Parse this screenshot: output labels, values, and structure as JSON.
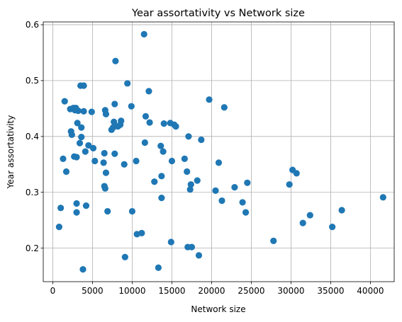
{
  "chart_data": {
    "type": "scatter",
    "title": "Year assortativity vs Network size",
    "xlabel": "Network size",
    "ylabel": "Year assortativity",
    "xlim": [
      -1200,
      43000
    ],
    "ylim": [
      0.14,
      0.605
    ],
    "xticks": [
      0,
      5000,
      10000,
      15000,
      20000,
      25000,
      30000,
      35000,
      40000
    ],
    "xtick_labels": [
      "0",
      "5000",
      "10000",
      "15000",
      "20000",
      "25000",
      "30000",
      "35000",
      "40000"
    ],
    "yticks": [
      0.2,
      0.3,
      0.4,
      0.5,
      0.6
    ],
    "ytick_labels": [
      "0.2",
      "0.3",
      "0.4",
      "0.5",
      "0.6"
    ],
    "grid": true,
    "marker_color": "#1f77b4",
    "points": [
      [
        800,
        0.238
      ],
      [
        1000,
        0.272
      ],
      [
        1300,
        0.36
      ],
      [
        1500,
        0.463
      ],
      [
        1700,
        0.337
      ],
      [
        2200,
        0.449
      ],
      [
        2300,
        0.409
      ],
      [
        2400,
        0.403
      ],
      [
        2600,
        0.451
      ],
      [
        2700,
        0.364
      ],
      [
        2800,
        0.447
      ],
      [
        2900,
        0.451
      ],
      [
        3000,
        0.363
      ],
      [
        3000,
        0.28
      ],
      [
        3000,
        0.264
      ],
      [
        3100,
        0.424
      ],
      [
        3200,
        0.446
      ],
      [
        3400,
        0.388
      ],
      [
        3500,
        0.491
      ],
      [
        3600,
        0.416
      ],
      [
        3600,
        0.399
      ],
      [
        3800,
        0.162
      ],
      [
        3900,
        0.491
      ],
      [
        3900,
        0.445
      ],
      [
        4100,
        0.373
      ],
      [
        4200,
        0.276
      ],
      [
        4500,
        0.384
      ],
      [
        4900,
        0.444
      ],
      [
        5100,
        0.379
      ],
      [
        5300,
        0.356
      ],
      [
        6400,
        0.353
      ],
      [
        6500,
        0.311
      ],
      [
        6500,
        0.37
      ],
      [
        6600,
        0.307
      ],
      [
        6600,
        0.447
      ],
      [
        6700,
        0.335
      ],
      [
        6700,
        0.44
      ],
      [
        6900,
        0.266
      ],
      [
        7400,
        0.412
      ],
      [
        7600,
        0.416
      ],
      [
        7700,
        0.426
      ],
      [
        7800,
        0.458
      ],
      [
        7800,
        0.369
      ],
      [
        7900,
        0.535
      ],
      [
        8200,
        0.418
      ],
      [
        8500,
        0.421
      ],
      [
        8600,
        0.428
      ],
      [
        9000,
        0.35
      ],
      [
        9100,
        0.184
      ],
      [
        9400,
        0.495
      ],
      [
        9900,
        0.454
      ],
      [
        10000,
        0.266
      ],
      [
        10500,
        0.356
      ],
      [
        10600,
        0.225
      ],
      [
        11200,
        0.227
      ],
      [
        11500,
        0.583
      ],
      [
        11600,
        0.389
      ],
      [
        11700,
        0.436
      ],
      [
        12100,
        0.481
      ],
      [
        12200,
        0.425
      ],
      [
        12800,
        0.319
      ],
      [
        13300,
        0.165
      ],
      [
        13600,
        0.383
      ],
      [
        13700,
        0.29
      ],
      [
        13700,
        0.329
      ],
      [
        13900,
        0.373
      ],
      [
        14000,
        0.423
      ],
      [
        14800,
        0.424
      ],
      [
        14900,
        0.211
      ],
      [
        15000,
        0.356
      ],
      [
        15300,
        0.421
      ],
      [
        15500,
        0.418
      ],
      [
        16600,
        0.36
      ],
      [
        16900,
        0.337
      ],
      [
        17000,
        0.202
      ],
      [
        17100,
        0.4
      ],
      [
        17300,
        0.305
      ],
      [
        17400,
        0.314
      ],
      [
        17500,
        0.202
      ],
      [
        18200,
        0.321
      ],
      [
        18400,
        0.187
      ],
      [
        18700,
        0.394
      ],
      [
        19700,
        0.466
      ],
      [
        20500,
        0.303
      ],
      [
        20900,
        0.353
      ],
      [
        21300,
        0.285
      ],
      [
        21600,
        0.452
      ],
      [
        22900,
        0.309
      ],
      [
        23900,
        0.282
      ],
      [
        24300,
        0.264
      ],
      [
        24500,
        0.317
      ],
      [
        27800,
        0.213
      ],
      [
        29800,
        0.314
      ],
      [
        30200,
        0.34
      ],
      [
        30700,
        0.334
      ],
      [
        31500,
        0.245
      ],
      [
        32400,
        0.259
      ],
      [
        35200,
        0.238
      ],
      [
        36400,
        0.268
      ],
      [
        41600,
        0.291
      ]
    ]
  }
}
